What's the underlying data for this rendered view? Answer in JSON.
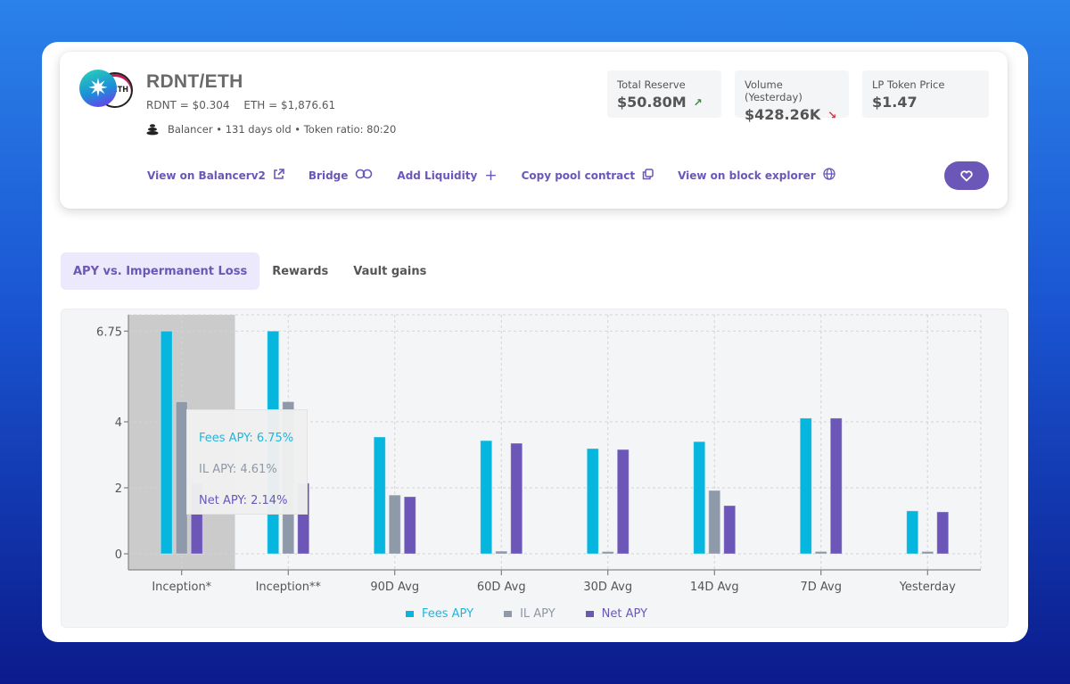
{
  "pool": {
    "title": "RDNT/ETH",
    "logo_primary": "radiant-star-logo",
    "logo_secondary": "ETH",
    "price_rdnt": "RDNT = $0.304",
    "price_eth": "ETH = $1,876.61",
    "meta": "Balancer • 131 days old • Token ratio: 80:20"
  },
  "stats": [
    {
      "label": "Total Reserve",
      "value": "$50.80M",
      "trend": "up",
      "trend_icon": "arrow-up-right"
    },
    {
      "label": "Volume (Yesterday)",
      "value": "$428.26K",
      "trend": "down",
      "trend_icon": "arrow-down-right"
    },
    {
      "label": "LP Token Price",
      "value": "$1.47"
    }
  ],
  "actions": [
    {
      "label": "View on Balancerv2",
      "icon": "external-link-icon",
      "glyph": "⧉"
    },
    {
      "label": "Bridge",
      "icon": "infinity-icon",
      "glyph": "∞"
    },
    {
      "label": "Add Liquidity",
      "icon": "plus-icon",
      "glyph": "+"
    },
    {
      "label": "Copy pool contract",
      "icon": "copy-icon",
      "glyph": "⧉"
    },
    {
      "label": "View on block explorer",
      "icon": "globe-icon",
      "glyph": "⊕"
    }
  ],
  "favorite_button": {
    "icon": "heart-icon",
    "glyph": "♡"
  },
  "tabs": [
    {
      "label": "APY vs. Impermanent Loss",
      "active": true
    },
    {
      "label": "Rewards",
      "active": false
    },
    {
      "label": "Vault gains",
      "active": false
    }
  ],
  "colors": {
    "fees": "#06b6de",
    "il": "#8e99aa",
    "net": "#6c56b7",
    "accent": "#6b57b8",
    "highlight": "#cbcbcb"
  },
  "tooltip": {
    "category": "Inception*",
    "fees": "Fees APY: 6.75%",
    "il": "IL APY: 4.61%",
    "net": "Net APY: 2.14%"
  },
  "chart_data": {
    "type": "bar",
    "title": "",
    "xlabel": "",
    "ylabel": "",
    "categories": [
      "Inception*",
      "Inception**",
      "90D Avg",
      "60D Avg",
      "30D Avg",
      "14D Avg",
      "7D Avg",
      "Yesterday"
    ],
    "series": [
      {
        "name": "Fees APY",
        "values": [
          6.75,
          6.75,
          3.54,
          3.43,
          3.19,
          3.4,
          4.11,
          1.3
        ]
      },
      {
        "name": "IL APY",
        "values": [
          4.61,
          4.61,
          1.78,
          0.08,
          0.06,
          1.92,
          0.07,
          0.07
        ]
      },
      {
        "name": "Net APY",
        "values": [
          2.14,
          2.14,
          1.73,
          3.35,
          3.16,
          1.46,
          4.11,
          1.27
        ]
      }
    ],
    "yticks": [
      0,
      2,
      4,
      6.75
    ],
    "ylim": [
      0,
      7.2
    ],
    "grid": true,
    "legend_position": "bottom-center",
    "highlighted_category": "Inception*"
  }
}
